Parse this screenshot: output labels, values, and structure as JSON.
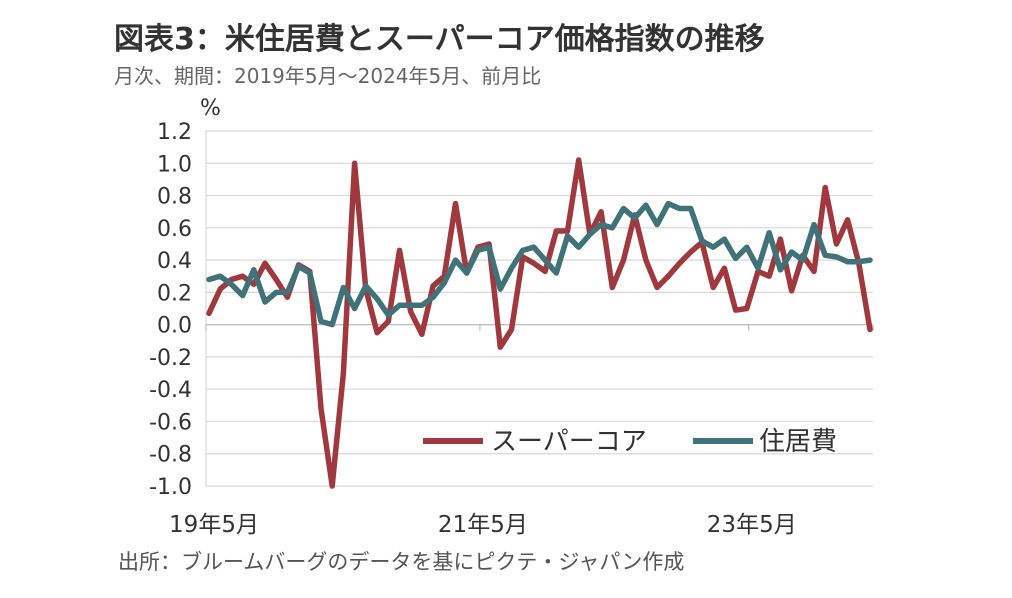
{
  "title": "図表3：米住居費とスーパーコア価格指数の推移",
  "subtitle": "月次、期間：2019年5月～2024年5月、前月比",
  "source": "出所：ブルームバーグのデータを基にピクテ・ジャパン作成",
  "chart_data": {
    "type": "line",
    "title": "図表3：米住居費とスーパーコア価格指数の推移",
    "subtitle": "月次、期間：2019年5月～2024年5月、前月比",
    "ylabel": "%",
    "ylim": [
      -1.0,
      1.2
    ],
    "yticks": [
      "1.2",
      "1.0",
      "0.8",
      "0.6",
      "0.4",
      "0.2",
      "0.0",
      "-0.2",
      "-0.4",
      "-0.6",
      "-0.8",
      "-1.0"
    ],
    "xtick_labels": [
      {
        "index": 0,
        "label": "19年5月"
      },
      {
        "index": 24,
        "label": "21年5月"
      },
      {
        "index": 48,
        "label": "23年5月"
      }
    ],
    "grid": true,
    "legend_position": "bottom-right",
    "series": [
      {
        "name": "スーパーコア",
        "color": "#A0393E",
        "values": [
          0.07,
          0.22,
          0.28,
          0.3,
          0.25,
          0.38,
          0.28,
          0.17,
          0.37,
          0.33,
          -0.52,
          -1.0,
          -0.3,
          1.0,
          0.22,
          -0.05,
          0.02,
          0.46,
          0.08,
          -0.06,
          0.24,
          0.3,
          0.75,
          0.32,
          0.48,
          0.5,
          -0.14,
          -0.03,
          0.42,
          0.38,
          0.33,
          0.58,
          0.58,
          1.02,
          0.56,
          0.7,
          0.23,
          0.4,
          0.68,
          0.4,
          0.23,
          0.3,
          0.38,
          0.45,
          0.51,
          0.23,
          0.35,
          0.09,
          0.1,
          0.33,
          0.3,
          0.53,
          0.21,
          0.43,
          0.33,
          0.85,
          0.5,
          0.65,
          0.38,
          -0.03
        ]
      },
      {
        "name": "住居費",
        "color": "#3F7279",
        "values": [
          0.28,
          0.3,
          0.25,
          0.18,
          0.34,
          0.14,
          0.2,
          0.2,
          0.36,
          0.32,
          0.02,
          0.0,
          0.23,
          0.1,
          0.24,
          0.16,
          0.06,
          0.12,
          0.12,
          0.12,
          0.17,
          0.26,
          0.4,
          0.32,
          0.46,
          0.48,
          0.22,
          0.35,
          0.46,
          0.48,
          0.4,
          0.32,
          0.55,
          0.48,
          0.56,
          0.62,
          0.6,
          0.72,
          0.66,
          0.74,
          0.62,
          0.75,
          0.72,
          0.72,
          0.52,
          0.48,
          0.53,
          0.41,
          0.48,
          0.35,
          0.57,
          0.34,
          0.45,
          0.4,
          0.62,
          0.43,
          0.42,
          0.39,
          0.39,
          0.4
        ]
      }
    ]
  }
}
